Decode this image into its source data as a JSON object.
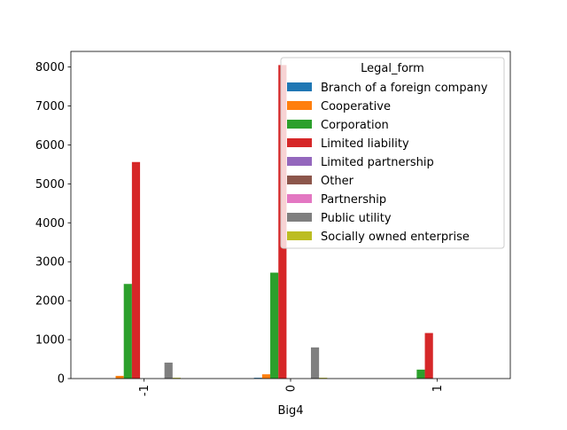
{
  "chart_data": {
    "type": "bar",
    "xlabel": "Big4",
    "ylabel": "",
    "title": "",
    "categories": [
      "-1",
      "0",
      "1"
    ],
    "ylim": [
      0,
      8400
    ],
    "yticks": [
      0,
      1000,
      2000,
      3000,
      4000,
      5000,
      6000,
      7000,
      8000
    ],
    "grid": false,
    "legend": {
      "title": "Legal_form",
      "placement": "top-right"
    },
    "series": [
      {
        "name": "Branch of a foreign company",
        "color": "#1f77b4",
        "values": [
          0,
          20,
          0
        ]
      },
      {
        "name": "Cooperative",
        "color": "#ff7f0e",
        "values": [
          70,
          110,
          0
        ]
      },
      {
        "name": "Corporation",
        "color": "#2ca02c",
        "values": [
          2430,
          2720,
          230
        ]
      },
      {
        "name": "Limited liability",
        "color": "#d62728",
        "values": [
          5560,
          8050,
          1170
        ]
      },
      {
        "name": "Limited partnership",
        "color": "#9467bd",
        "values": [
          0,
          0,
          0
        ]
      },
      {
        "name": "Other",
        "color": "#8c564b",
        "values": [
          0,
          0,
          0
        ]
      },
      {
        "name": "Partnership",
        "color": "#e377c2",
        "values": [
          0,
          0,
          0
        ]
      },
      {
        "name": "Public utility",
        "color": "#7f7f7f",
        "values": [
          410,
          800,
          0
        ]
      },
      {
        "name": "Socially owned enterprise",
        "color": "#bcbd22",
        "values": [
          20,
          20,
          0
        ]
      }
    ]
  }
}
